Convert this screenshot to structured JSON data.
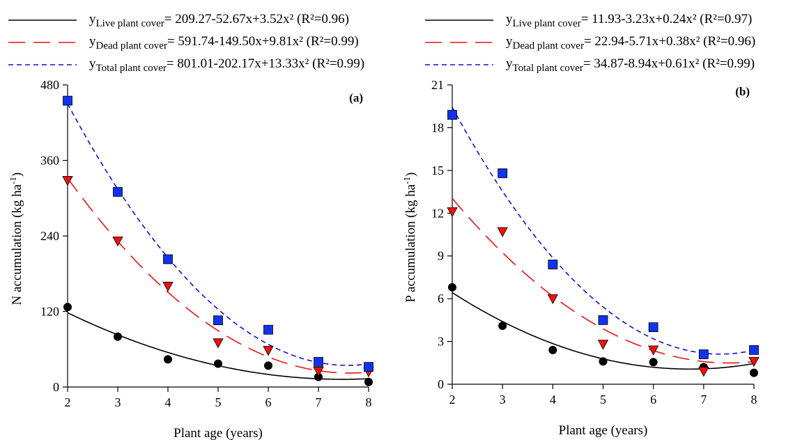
{
  "chart_data": [
    {
      "type": "scatter",
      "panel_label": "(a)",
      "xlabel": "Plant age (years)",
      "ylabel": "N accumulation (kg ha",
      "ylabel_sup": "-1",
      "ylabel_end": ")",
      "xlim": [
        2,
        8
      ],
      "ylim": [
        0,
        480
      ],
      "xticks": [
        2,
        3,
        4,
        5,
        6,
        7,
        8
      ],
      "yticks": [
        0,
        120,
        240,
        360,
        480
      ],
      "x": [
        2,
        3,
        4,
        5,
        6,
        7,
        8
      ],
      "series": [
        {
          "key": "live",
          "legend_prefix": "y",
          "legend_sub": "Live plant cover",
          "legend_eq": "= 209.27-52.67x+3.52x² (R²=0.96)",
          "values": [
            127,
            80,
            44,
            37,
            34,
            16,
            8
          ],
          "marker": "circle",
          "color": "#000000",
          "line_color": "#000000",
          "dash": "solid",
          "fit": [
            209.27,
            -52.67,
            3.52
          ]
        },
        {
          "key": "dead",
          "legend_prefix": "y",
          "legend_sub": "Dead plant cover",
          "legend_eq": "= 591.74-149.50x+9.81x² (R²=0.99)",
          "values": [
            328,
            232,
            160,
            70,
            58,
            25,
            24
          ],
          "marker": "triangle-down",
          "color": "#ee1111",
          "line_color": "#ee1111",
          "dash": "long",
          "fit": [
            591.74,
            -149.5,
            9.81
          ]
        },
        {
          "key": "total",
          "legend_prefix": "y",
          "legend_sub": "Total plant cover",
          "legend_eq": "= 801.01-202.17x+13.33x² (R²=0.99)",
          "values": [
            455,
            310,
            203,
            106,
            91,
            40,
            32
          ],
          "marker": "square",
          "color": "#1133ee",
          "line_color": "#1111cc",
          "dash": "short",
          "fit": [
            801.01,
            -202.17,
            13.33
          ]
        }
      ]
    },
    {
      "type": "scatter",
      "panel_label": "(b)",
      "xlabel": "Plant age (years)",
      "ylabel": "P accumulation (kg ha",
      "ylabel_sup": "-1",
      "ylabel_end": ")",
      "xlim": [
        2,
        8
      ],
      "ylim": [
        0,
        21
      ],
      "xticks": [
        2,
        3,
        4,
        5,
        6,
        7,
        8
      ],
      "yticks": [
        0,
        3,
        6,
        9,
        12,
        15,
        18,
        21
      ],
      "x": [
        2,
        3,
        4,
        5,
        6,
        7,
        8
      ],
      "series": [
        {
          "key": "live",
          "legend_prefix": "y",
          "legend_sub": "Live plant cover",
          "legend_eq": "= 11.93-3.23x+0.24x² (R²=0.97)",
          "values": [
            6.8,
            4.1,
            2.4,
            1.6,
            1.55,
            1.2,
            0.8
          ],
          "marker": "circle",
          "color": "#000000",
          "line_color": "#000000",
          "dash": "solid",
          "fit": [
            11.93,
            -3.23,
            0.24
          ]
        },
        {
          "key": "dead",
          "legend_prefix": "y",
          "legend_sub": "Dead plant cover",
          "legend_eq": "= 22.94-5.71x+0.38x² (R²=0.96)",
          "values": [
            12.1,
            10.7,
            6.0,
            2.8,
            2.4,
            0.9,
            1.6
          ],
          "marker": "triangle-down",
          "color": "#ee1111",
          "line_color": "#ee1111",
          "dash": "long",
          "fit": [
            22.94,
            -5.71,
            0.38
          ]
        },
        {
          "key": "total",
          "legend_prefix": "y",
          "legend_sub": "Total plant cover",
          "legend_eq": "= 34.87-8.94x+0.61x² (R²=0.99)",
          "values": [
            18.9,
            14.8,
            8.4,
            4.5,
            4.0,
            2.1,
            2.4
          ],
          "marker": "square",
          "color": "#1133ee",
          "line_color": "#1111cc",
          "dash": "short",
          "fit": [
            34.87,
            -8.94,
            0.61
          ]
        }
      ]
    }
  ]
}
